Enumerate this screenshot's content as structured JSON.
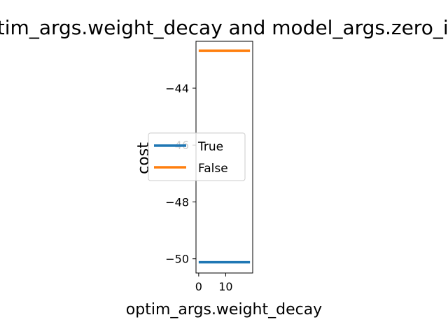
{
  "chart_data": {
    "type": "line",
    "title": "optim_args.weight_decay and model_args.zero_init",
    "xlabel": "optim_args.weight_decay",
    "ylabel": "cost",
    "xlim": [
      -1,
      20
    ],
    "ylim": [
      -50.5,
      -42.35
    ],
    "x_ticks": [
      0,
      10
    ],
    "y_ticks": [
      -44,
      -46,
      -48,
      -50
    ],
    "grid": false,
    "legend": "center-left",
    "series": [
      {
        "name": "True",
        "color": "#1f77b4",
        "x": [
          0,
          19
        ],
        "y": [
          -50.12,
          -50.12
        ]
      },
      {
        "name": "False",
        "color": "#ff7f0e",
        "x": [
          0,
          19
        ],
        "y": [
          -42.68,
          -42.68
        ]
      }
    ]
  }
}
